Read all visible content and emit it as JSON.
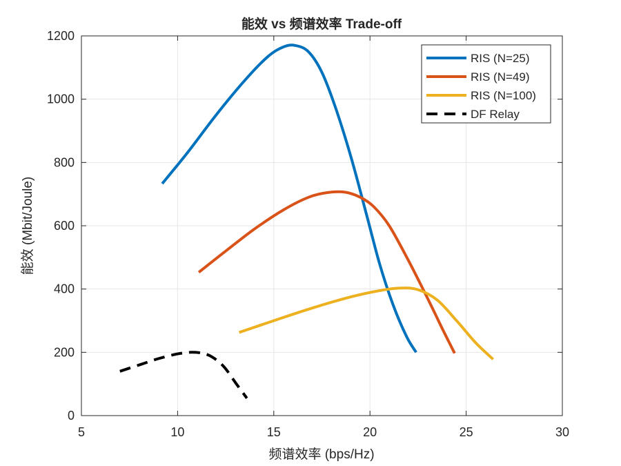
{
  "chart_data": {
    "type": "line",
    "title": "能效 vs 频谱效率 Trade-off",
    "xlabel": "频谱效率 (bps/Hz)",
    "ylabel": "能效 (Mbit/Joule)",
    "xlim": [
      5,
      30
    ],
    "ylim": [
      0,
      1200
    ],
    "xticks": [
      5,
      10,
      15,
      20,
      25,
      30
    ],
    "yticks": [
      0,
      200,
      400,
      600,
      800,
      1000,
      1200
    ],
    "grid": true,
    "legend_position": "top-right",
    "series": [
      {
        "name": "RIS (N=25)",
        "color": "#0072BD",
        "dash": "solid",
        "x": [
          9.2,
          10.5,
          12.0,
          13.5,
          14.7,
          15.5,
          16.1,
          16.8,
          17.5,
          18.2,
          19.0,
          19.8,
          20.5,
          21.2,
          21.9,
          22.4
        ],
        "y": [
          733,
          830,
          950,
          1060,
          1135,
          1165,
          1170,
          1150,
          1085,
          975,
          820,
          640,
          480,
          350,
          250,
          200
        ]
      },
      {
        "name": "RIS (N=49)",
        "color": "#D95319",
        "dash": "solid",
        "x": [
          11.1,
          12.5,
          14.0,
          15.5,
          16.8,
          17.8,
          18.7,
          19.5,
          20.2,
          21.0,
          22.0,
          23.0,
          23.8,
          24.4
        ],
        "y": [
          453,
          520,
          590,
          650,
          690,
          705,
          706,
          690,
          660,
          600,
          490,
          370,
          270,
          197
        ]
      },
      {
        "name": "RIS (N=100)",
        "color": "#EDB120",
        "dash": "solid",
        "x": [
          13.2,
          15.0,
          17.0,
          19.0,
          20.5,
          21.6,
          22.5,
          23.5,
          24.5,
          25.5,
          26.4
        ],
        "y": [
          263,
          300,
          340,
          375,
          395,
          403,
          398,
          365,
          300,
          230,
          178
        ]
      },
      {
        "name": "DF Relay",
        "color": "#000000",
        "dash": "dashed",
        "x": [
          7.0,
          8.0,
          9.0,
          10.0,
          10.7,
          11.3,
          11.8,
          12.4,
          13.0,
          13.6
        ],
        "y": [
          140,
          160,
          180,
          195,
          200,
          197,
          185,
          155,
          105,
          55
        ]
      }
    ]
  }
}
